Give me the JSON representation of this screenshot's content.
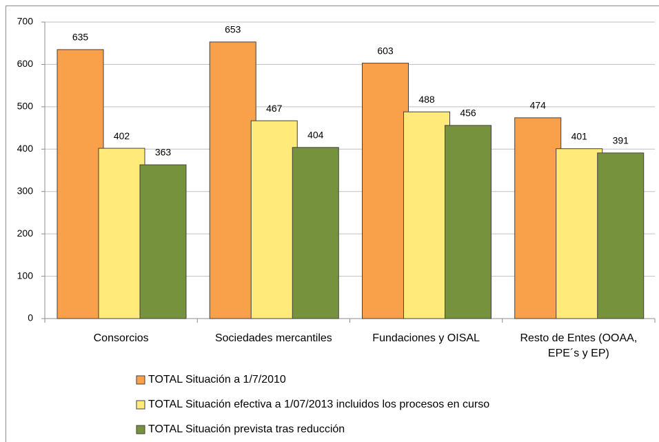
{
  "chart_data": {
    "type": "bar",
    "categories": [
      "Consorcios",
      "Sociedades mercantiles",
      "Fundaciones y OISAL",
      "Resto de Entes (OOAA, EPE´s y EP)"
    ],
    "series": [
      {
        "name": "TOTAL Situación a 1/7/2010",
        "color": "#f9a04b",
        "values": [
          635,
          653,
          603,
          474
        ]
      },
      {
        "name": "TOTAL Situación efectiva a 1/07/2013 incluidos los procesos en curso",
        "color": "#ffea7a",
        "values": [
          402,
          467,
          488,
          401
        ]
      },
      {
        "name": "TOTAL Situación prevista tras reducción",
        "color": "#76923c",
        "values": [
          363,
          404,
          456,
          391
        ]
      }
    ],
    "ylim": [
      0,
      700
    ],
    "yticks": [
      0,
      100,
      200,
      300,
      400,
      500,
      600,
      700
    ],
    "grid": true
  }
}
